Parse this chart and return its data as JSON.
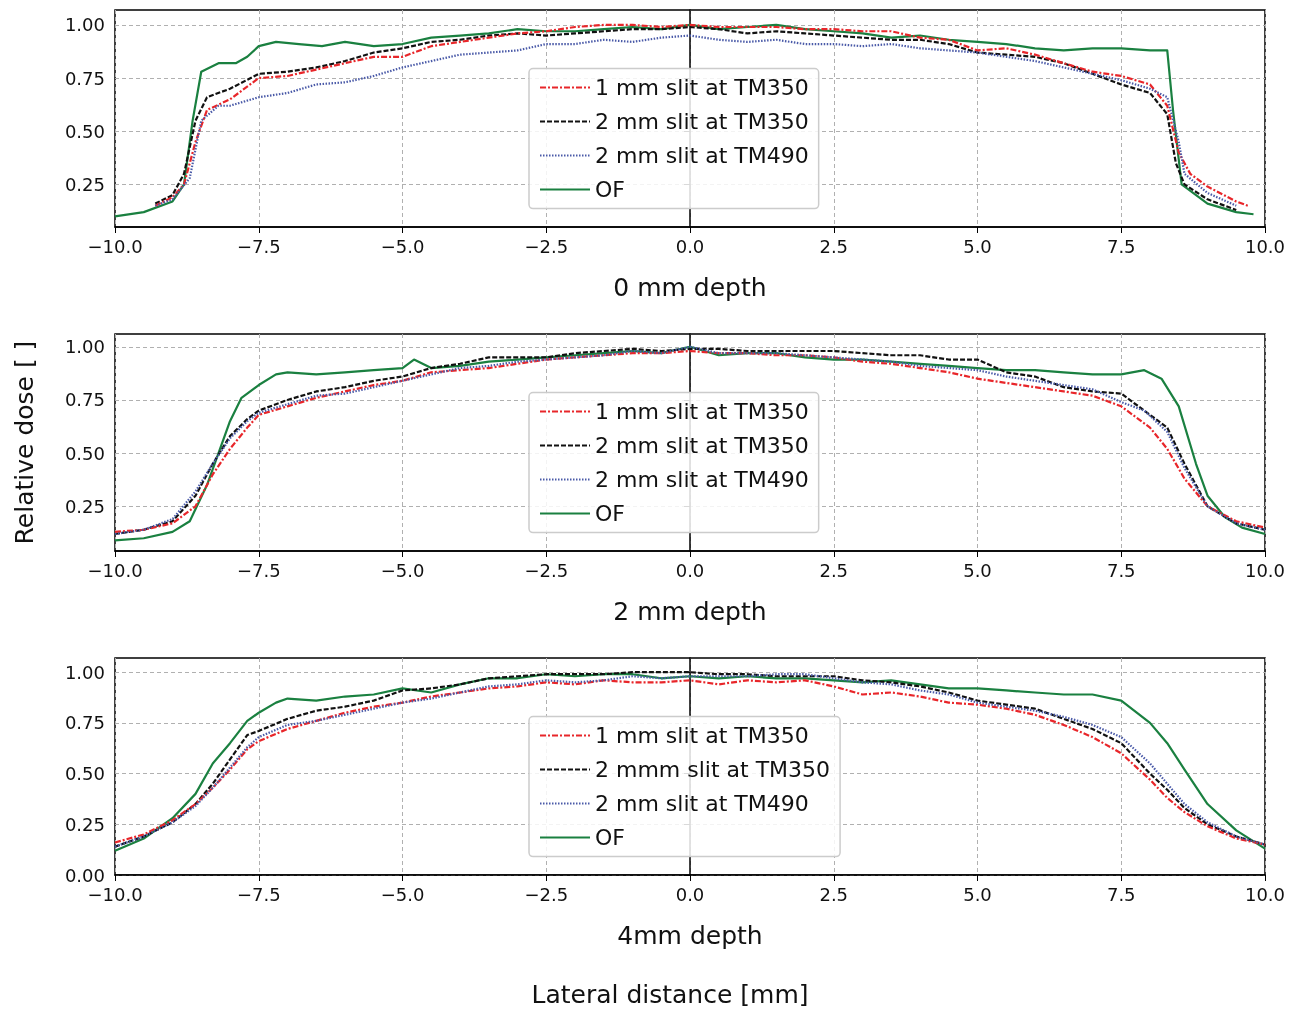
{
  "chart_data": [
    {
      "type": "line",
      "xlabel": "0 mm depth",
      "xlim": [
        -10,
        10
      ],
      "ylim": [
        0.05,
        1.07
      ],
      "xticks": [
        {
          "value": -10,
          "label": "−10.0"
        },
        {
          "value": -7.5,
          "label": "−7.5"
        },
        {
          "value": -5,
          "label": "−5.0"
        },
        {
          "value": -2.5,
          "label": "−2.5"
        },
        {
          "value": 0,
          "label": "0.0"
        },
        {
          "value": 2.5,
          "label": "2.5"
        },
        {
          "value": 5,
          "label": "5.0"
        },
        {
          "value": 7.5,
          "label": "7.5"
        },
        {
          "value": 10,
          "label": "10.0"
        }
      ],
      "yticks": [
        {
          "value": 0.25,
          "label": "0.25"
        },
        {
          "value": 0.5,
          "label": "0.50"
        },
        {
          "value": 0.75,
          "label": "0.75"
        },
        {
          "value": 1,
          "label": "1.00"
        }
      ],
      "grid": true,
      "legend": "center",
      "marker": "none",
      "series": [
        {
          "name": "1 mm slit at TM350",
          "color": "#e8262a",
          "line_style": "dashdot",
          "x": [
            -9.3,
            -9.0,
            -8.8,
            -8.6,
            -8.4,
            -8.0,
            -7.5,
            -7.0,
            -6.5,
            -6.0,
            -5.5,
            -5.0,
            -4.5,
            -4.0,
            -3.5,
            -3.0,
            -2.5,
            -2.0,
            -1.5,
            -1.0,
            -0.5,
            0,
            0.5,
            1.0,
            1.5,
            2.0,
            2.5,
            3.0,
            3.5,
            4.0,
            4.5,
            5.0,
            5.5,
            6.0,
            6.5,
            7.0,
            7.5,
            8.0,
            8.3,
            8.5,
            8.7,
            9.0,
            9.5,
            9.7
          ],
          "values": [
            0.15,
            0.19,
            0.25,
            0.45,
            0.6,
            0.65,
            0.75,
            0.76,
            0.79,
            0.82,
            0.85,
            0.85,
            0.9,
            0.92,
            0.94,
            0.96,
            0.97,
            0.99,
            1.0,
            1.0,
            0.99,
            1.0,
            0.99,
            0.99,
            0.99,
            0.98,
            0.98,
            0.97,
            0.97,
            0.94,
            0.93,
            0.88,
            0.89,
            0.86,
            0.82,
            0.78,
            0.76,
            0.72,
            0.62,
            0.4,
            0.3,
            0.24,
            0.17,
            0.15
          ]
        },
        {
          "name": "2 mm slit at TM350",
          "color": "#111111",
          "line_style": "dashed",
          "x": [
            -9.3,
            -9.0,
            -8.8,
            -8.6,
            -8.4,
            -8.0,
            -7.5,
            -7.0,
            -6.5,
            -6.0,
            -5.5,
            -5.0,
            -4.5,
            -4.0,
            -3.5,
            -3.0,
            -2.5,
            -2.0,
            -1.5,
            -1.0,
            -0.5,
            0,
            0.5,
            1.0,
            1.5,
            2.0,
            2.5,
            3.0,
            3.5,
            4.0,
            4.5,
            5.0,
            5.5,
            6.0,
            6.5,
            7.0,
            7.5,
            8.0,
            8.3,
            8.45,
            8.6,
            9.0,
            9.5
          ],
          "values": [
            0.16,
            0.2,
            0.3,
            0.55,
            0.66,
            0.7,
            0.77,
            0.78,
            0.8,
            0.83,
            0.87,
            0.89,
            0.92,
            0.93,
            0.95,
            0.96,
            0.95,
            0.96,
            0.97,
            0.98,
            0.98,
            0.99,
            0.98,
            0.96,
            0.97,
            0.96,
            0.95,
            0.94,
            0.93,
            0.93,
            0.91,
            0.87,
            0.86,
            0.85,
            0.82,
            0.77,
            0.72,
            0.68,
            0.58,
            0.35,
            0.25,
            0.18,
            0.13
          ]
        },
        {
          "name": "2 mm slit at TM490",
          "color": "#4a5aa8",
          "line_style": "dotted",
          "x": [
            -9.3,
            -9.0,
            -8.7,
            -8.5,
            -8.2,
            -8.0,
            -7.5,
            -7.0,
            -6.5,
            -6.0,
            -5.5,
            -5.0,
            -4.5,
            -4.0,
            -3.5,
            -3.0,
            -2.5,
            -2.0,
            -1.5,
            -1.0,
            -0.5,
            0,
            0.5,
            1.0,
            1.5,
            2.0,
            2.5,
            3.0,
            3.5,
            4.0,
            4.5,
            5.0,
            5.5,
            6.0,
            6.5,
            7.0,
            7.5,
            8.0,
            8.3,
            8.5,
            8.6,
            9.0,
            9.5
          ],
          "values": [
            0.15,
            0.18,
            0.28,
            0.55,
            0.62,
            0.62,
            0.66,
            0.68,
            0.72,
            0.73,
            0.76,
            0.8,
            0.83,
            0.86,
            0.87,
            0.88,
            0.91,
            0.91,
            0.93,
            0.92,
            0.94,
            0.95,
            0.93,
            0.92,
            0.93,
            0.91,
            0.91,
            0.9,
            0.91,
            0.89,
            0.88,
            0.87,
            0.85,
            0.83,
            0.8,
            0.77,
            0.74,
            0.7,
            0.66,
            0.45,
            0.3,
            0.21,
            0.15
          ]
        },
        {
          "name": "OF",
          "color": "#1a8040",
          "line_style": "solid",
          "x": [
            -10,
            -9.5,
            -9.0,
            -8.8,
            -8.65,
            -8.5,
            -8.2,
            -7.9,
            -7.7,
            -7.5,
            -7.2,
            -6.8,
            -6.4,
            -6.0,
            -5.5,
            -5.0,
            -4.5,
            -4.0,
            -3.5,
            -3.0,
            -2.5,
            -2.0,
            -1.5,
            -1.0,
            -0.5,
            0,
            0.5,
            1.0,
            1.5,
            2.0,
            2.5,
            3.0,
            3.5,
            4.0,
            4.5,
            5.0,
            5.5,
            6.0,
            6.5,
            7.0,
            7.5,
            8.0,
            8.3,
            8.4,
            8.55,
            9.0,
            9.5,
            9.8
          ],
          "values": [
            0.1,
            0.12,
            0.17,
            0.25,
            0.55,
            0.78,
            0.82,
            0.82,
            0.85,
            0.9,
            0.92,
            0.91,
            0.9,
            0.92,
            0.9,
            0.91,
            0.94,
            0.95,
            0.96,
            0.98,
            0.97,
            0.97,
            0.98,
            0.99,
            0.98,
            1.0,
            0.98,
            0.99,
            1.0,
            0.98,
            0.97,
            0.96,
            0.94,
            0.95,
            0.93,
            0.92,
            0.91,
            0.89,
            0.88,
            0.89,
            0.89,
            0.88,
            0.88,
            0.6,
            0.25,
            0.16,
            0.12,
            0.11
          ]
        }
      ]
    },
    {
      "type": "line",
      "xlabel": "2 mm depth",
      "ylabel": "Relative dose [ ]",
      "xlim": [
        -10,
        10
      ],
      "ylim": [
        0.04,
        1.06
      ],
      "xticks": [
        {
          "value": -10,
          "label": "−10.0"
        },
        {
          "value": -7.5,
          "label": "−7.5"
        },
        {
          "value": -5,
          "label": "−5.0"
        },
        {
          "value": -2.5,
          "label": "−2.5"
        },
        {
          "value": 0,
          "label": "0.0"
        },
        {
          "value": 2.5,
          "label": "2.5"
        },
        {
          "value": 5,
          "label": "5.0"
        },
        {
          "value": 7.5,
          "label": "7.5"
        },
        {
          "value": 10,
          "label": "10.0"
        }
      ],
      "yticks": [
        {
          "value": 0.25,
          "label": "0.25"
        },
        {
          "value": 0.5,
          "label": "0.50"
        },
        {
          "value": 0.75,
          "label": "0.75"
        },
        {
          "value": 1,
          "label": "1.00"
        }
      ],
      "grid": true,
      "legend": "center",
      "marker": "none",
      "series": [
        {
          "name": "1 mm slit at TM350",
          "color": "#e8262a",
          "line_style": "dashdot",
          "x": [
            -10,
            -9.5,
            -9.0,
            -8.6,
            -8.3,
            -8.0,
            -7.7,
            -7.5,
            -7.0,
            -6.5,
            -6.0,
            -5.5,
            -5.0,
            -4.5,
            -4.0,
            -3.5,
            -3.0,
            -2.5,
            -2.0,
            -1.5,
            -1.0,
            -0.5,
            0,
            0.5,
            1.0,
            1.5,
            2.0,
            2.5,
            3.0,
            3.5,
            4.0,
            4.5,
            5.0,
            5.5,
            6.0,
            6.5,
            7.0,
            7.5,
            8.0,
            8.3,
            8.6,
            9.0,
            9.5,
            10
          ],
          "values": [
            0.13,
            0.14,
            0.17,
            0.25,
            0.4,
            0.52,
            0.62,
            0.68,
            0.72,
            0.76,
            0.79,
            0.82,
            0.84,
            0.88,
            0.89,
            0.9,
            0.92,
            0.94,
            0.95,
            0.96,
            0.97,
            0.97,
            0.98,
            0.97,
            0.97,
            0.96,
            0.96,
            0.95,
            0.93,
            0.92,
            0.9,
            0.88,
            0.85,
            0.83,
            0.81,
            0.79,
            0.77,
            0.72,
            0.62,
            0.52,
            0.38,
            0.25,
            0.18,
            0.15
          ]
        },
        {
          "name": "2 mm slit at TM350",
          "color": "#111111",
          "line_style": "dashed",
          "x": [
            -10,
            -9.5,
            -9.0,
            -8.6,
            -8.3,
            -8.0,
            -7.7,
            -7.5,
            -7.0,
            -6.5,
            -6.0,
            -5.5,
            -5.0,
            -4.5,
            -4.0,
            -3.5,
            -3.0,
            -2.5,
            -2.0,
            -1.5,
            -1.0,
            -0.5,
            0,
            0.5,
            1.0,
            1.5,
            2.0,
            2.5,
            3.0,
            3.5,
            4.0,
            4.5,
            5.0,
            5.5,
            6.0,
            6.5,
            7.0,
            7.5,
            7.9,
            8.3,
            8.6,
            9.0,
            9.5,
            10
          ],
          "values": [
            0.12,
            0.14,
            0.18,
            0.3,
            0.45,
            0.58,
            0.66,
            0.7,
            0.75,
            0.79,
            0.81,
            0.84,
            0.86,
            0.9,
            0.92,
            0.95,
            0.95,
            0.95,
            0.97,
            0.98,
            0.99,
            0.98,
            0.99,
            0.99,
            0.98,
            0.98,
            0.98,
            0.98,
            0.97,
            0.96,
            0.96,
            0.94,
            0.94,
            0.88,
            0.86,
            0.81,
            0.79,
            0.78,
            0.7,
            0.62,
            0.45,
            0.25,
            0.17,
            0.14
          ]
        },
        {
          "name": "2 mm slit at TM490",
          "color": "#4a5aa8",
          "line_style": "dotted",
          "x": [
            -10,
            -9.5,
            -9.0,
            -8.6,
            -8.3,
            -8.0,
            -7.7,
            -7.5,
            -7.0,
            -6.5,
            -6.0,
            -5.5,
            -5.0,
            -4.5,
            -4.0,
            -3.5,
            -3.0,
            -2.5,
            -2.0,
            -1.5,
            -1.0,
            -0.5,
            0,
            0.5,
            1.0,
            1.5,
            2.0,
            2.5,
            3.0,
            3.5,
            4.0,
            4.5,
            5.0,
            5.5,
            6.0,
            6.5,
            7.0,
            7.5,
            7.9,
            8.3,
            8.6,
            9.0,
            9.5,
            10
          ],
          "values": [
            0.12,
            0.14,
            0.19,
            0.32,
            0.45,
            0.57,
            0.65,
            0.69,
            0.73,
            0.77,
            0.78,
            0.81,
            0.84,
            0.87,
            0.9,
            0.91,
            0.93,
            0.94,
            0.95,
            0.96,
            0.98,
            0.97,
            1.0,
            0.97,
            0.97,
            0.97,
            0.96,
            0.95,
            0.94,
            0.93,
            0.91,
            0.9,
            0.89,
            0.86,
            0.84,
            0.82,
            0.8,
            0.74,
            0.7,
            0.6,
            0.43,
            0.25,
            0.17,
            0.14
          ]
        },
        {
          "name": "OF",
          "color": "#1a8040",
          "line_style": "solid",
          "x": [
            -10,
            -9.5,
            -9.0,
            -8.7,
            -8.4,
            -8.0,
            -7.8,
            -7.5,
            -7.2,
            -7.0,
            -6.5,
            -6.0,
            -5.5,
            -5.0,
            -4.8,
            -4.5,
            -4.0,
            -3.5,
            -3.0,
            -2.5,
            -2.0,
            -1.5,
            -1.0,
            -0.5,
            0,
            0.5,
            1.0,
            1.5,
            2.0,
            2.5,
            3.0,
            3.5,
            4.0,
            4.5,
            5.0,
            5.5,
            6.0,
            6.5,
            7.0,
            7.5,
            7.9,
            8.2,
            8.5,
            8.8,
            9.0,
            9.3,
            9.6,
            10
          ],
          "values": [
            0.09,
            0.1,
            0.13,
            0.18,
            0.35,
            0.65,
            0.76,
            0.82,
            0.87,
            0.88,
            0.87,
            0.88,
            0.89,
            0.9,
            0.94,
            0.9,
            0.91,
            0.93,
            0.94,
            0.95,
            0.96,
            0.97,
            0.98,
            0.97,
            1.0,
            0.96,
            0.97,
            0.97,
            0.95,
            0.94,
            0.94,
            0.93,
            0.92,
            0.91,
            0.9,
            0.89,
            0.89,
            0.88,
            0.87,
            0.87,
            0.89,
            0.85,
            0.72,
            0.45,
            0.3,
            0.2,
            0.15,
            0.12
          ]
        }
      ]
    },
    {
      "type": "line",
      "xlabel": "4mm depth",
      "xlim": [
        -10,
        10
      ],
      "ylim": [
        0,
        1.07
      ],
      "xticks": [
        {
          "value": -10,
          "label": "−10.0"
        },
        {
          "value": -7.5,
          "label": "−7.5"
        },
        {
          "value": -5,
          "label": "−5.0"
        },
        {
          "value": -2.5,
          "label": "−2.5"
        },
        {
          "value": 0,
          "label": "0.0"
        },
        {
          "value": 2.5,
          "label": "2.5"
        },
        {
          "value": 5,
          "label": "5.0"
        },
        {
          "value": 7.5,
          "label": "7.5"
        },
        {
          "value": 10,
          "label": "10.0"
        }
      ],
      "yticks": [
        {
          "value": 0,
          "label": "0.00"
        },
        {
          "value": 0.25,
          "label": "0.25"
        },
        {
          "value": 0.5,
          "label": "0.50"
        },
        {
          "value": 0.75,
          "label": "0.75"
        },
        {
          "value": 1,
          "label": "1.00"
        }
      ],
      "grid": true,
      "legend": "center",
      "marker": "none",
      "annotations": [
        "Lateral distance [mm]"
      ],
      "series": [
        {
          "name": "1 mm slit at TM350",
          "color": "#e8262a",
          "line_style": "dashdot",
          "x": [
            -10,
            -9.5,
            -9.0,
            -8.6,
            -8.3,
            -8.0,
            -7.7,
            -7.5,
            -7.0,
            -6.5,
            -6.0,
            -5.5,
            -5.0,
            -4.5,
            -4.0,
            -3.5,
            -3.0,
            -2.5,
            -2.0,
            -1.5,
            -1.0,
            -0.5,
            0,
            0.5,
            1.0,
            1.5,
            2.0,
            2.5,
            3.0,
            3.5,
            4.0,
            4.5,
            5.0,
            5.5,
            6.0,
            6.5,
            7.0,
            7.5,
            8.0,
            8.3,
            8.6,
            9.0,
            9.5,
            10
          ],
          "values": [
            0.16,
            0.2,
            0.27,
            0.35,
            0.43,
            0.52,
            0.62,
            0.66,
            0.72,
            0.76,
            0.8,
            0.83,
            0.85,
            0.88,
            0.9,
            0.92,
            0.93,
            0.95,
            0.94,
            0.96,
            0.95,
            0.95,
            0.96,
            0.94,
            0.96,
            0.95,
            0.96,
            0.93,
            0.89,
            0.9,
            0.88,
            0.85,
            0.84,
            0.82,
            0.79,
            0.74,
            0.68,
            0.6,
            0.47,
            0.38,
            0.31,
            0.24,
            0.18,
            0.15
          ]
        },
        {
          "name": "2 mmm slit at TM350",
          "color": "#111111",
          "line_style": "dashed",
          "x": [
            -10,
            -9.5,
            -9.0,
            -8.6,
            -8.3,
            -8.0,
            -7.7,
            -7.5,
            -7.0,
            -6.5,
            -6.0,
            -5.5,
            -5.0,
            -4.5,
            -4.0,
            -3.5,
            -3.0,
            -2.5,
            -2.0,
            -1.5,
            -1.0,
            -0.5,
            0,
            0.5,
            1.0,
            1.5,
            2.0,
            2.5,
            3.0,
            3.5,
            4.0,
            4.5,
            5.0,
            5.5,
            6.0,
            6.5,
            7.0,
            7.5,
            8.0,
            8.3,
            8.6,
            9.0,
            9.5,
            10
          ],
          "values": [
            0.14,
            0.19,
            0.26,
            0.35,
            0.45,
            0.57,
            0.69,
            0.71,
            0.77,
            0.81,
            0.83,
            0.86,
            0.91,
            0.92,
            0.94,
            0.97,
            0.98,
            0.99,
            0.99,
            0.99,
            1.0,
            1.0,
            1.0,
            0.99,
            0.99,
            0.98,
            0.98,
            0.98,
            0.96,
            0.95,
            0.93,
            0.9,
            0.86,
            0.84,
            0.82,
            0.77,
            0.72,
            0.65,
            0.5,
            0.42,
            0.33,
            0.25,
            0.19,
            0.15
          ]
        },
        {
          "name": "2 mm slit at TM490",
          "color": "#4a5aa8",
          "line_style": "dotted",
          "x": [
            -10,
            -9.5,
            -9.0,
            -8.6,
            -8.3,
            -8.0,
            -7.7,
            -7.5,
            -7.0,
            -6.5,
            -6.0,
            -5.5,
            -5.0,
            -4.5,
            -4.0,
            -3.5,
            -3.0,
            -2.5,
            -2.0,
            -1.5,
            -1.0,
            -0.5,
            0,
            0.5,
            1.0,
            1.5,
            2.0,
            2.5,
            3.0,
            3.5,
            4.0,
            4.5,
            5.0,
            5.5,
            6.0,
            6.5,
            7.0,
            7.5,
            8.0,
            8.3,
            8.6,
            9.0,
            9.5,
            10
          ],
          "values": [
            0.14,
            0.19,
            0.26,
            0.34,
            0.43,
            0.53,
            0.63,
            0.68,
            0.74,
            0.76,
            0.79,
            0.82,
            0.85,
            0.87,
            0.9,
            0.93,
            0.94,
            0.96,
            0.95,
            0.96,
            0.98,
            0.97,
            0.98,
            0.98,
            0.98,
            0.99,
            0.99,
            0.97,
            0.95,
            0.94,
            0.91,
            0.89,
            0.85,
            0.83,
            0.81,
            0.78,
            0.74,
            0.68,
            0.55,
            0.45,
            0.35,
            0.26,
            0.19,
            0.15
          ]
        },
        {
          "name": "OF",
          "color": "#1a8040",
          "line_style": "solid",
          "x": [
            -10,
            -9.5,
            -9.0,
            -8.6,
            -8.3,
            -8.0,
            -7.7,
            -7.5,
            -7.2,
            -7.0,
            -6.5,
            -6.0,
            -5.5,
            -5.0,
            -4.5,
            -4.0,
            -3.5,
            -3.0,
            -2.5,
            -2.0,
            -1.5,
            -1.0,
            -0.5,
            0,
            0.5,
            1.0,
            1.5,
            2.0,
            2.5,
            3.0,
            3.5,
            4.0,
            4.5,
            5.0,
            5.5,
            6.0,
            6.5,
            7.0,
            7.5,
            8.0,
            8.3,
            8.6,
            9.0,
            9.5,
            10
          ],
          "values": [
            0.12,
            0.18,
            0.28,
            0.4,
            0.55,
            0.65,
            0.76,
            0.8,
            0.85,
            0.87,
            0.86,
            0.88,
            0.89,
            0.92,
            0.9,
            0.94,
            0.97,
            0.97,
            0.99,
            0.98,
            0.99,
            0.99,
            0.97,
            0.98,
            0.97,
            0.98,
            0.97,
            0.97,
            0.96,
            0.95,
            0.96,
            0.94,
            0.92,
            0.92,
            0.91,
            0.9,
            0.89,
            0.89,
            0.86,
            0.75,
            0.65,
            0.52,
            0.35,
            0.22,
            0.13
          ]
        }
      ]
    }
  ]
}
